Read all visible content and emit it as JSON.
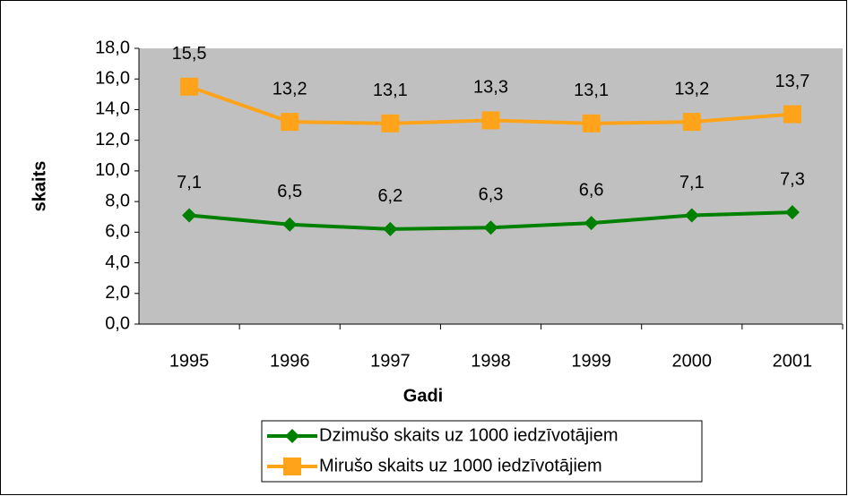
{
  "chart_data": {
    "type": "line",
    "x_label": "Gadi",
    "y_label": "skaits",
    "categories": [
      "1995",
      "1996",
      "1997",
      "1998",
      "1999",
      "2000",
      "2001"
    ],
    "series": [
      {
        "name": "Dzimušo skaits uz 1000 iedzīvotājiem",
        "color": "#008000",
        "marker": "diamond",
        "values": [
          7.1,
          6.5,
          6.2,
          6.3,
          6.6,
          7.1,
          7.3
        ],
        "value_labels": [
          "7,1",
          "6,5",
          "6,2",
          "6,3",
          "6,6",
          "7,1",
          "7,3"
        ]
      },
      {
        "name": "Mirušo skaits uz 1000 iedzīvotājiem",
        "color": "#ffa31a",
        "marker": "square",
        "values": [
          15.5,
          13.2,
          13.1,
          13.3,
          13.1,
          13.2,
          13.7
        ],
        "value_labels": [
          "15,5",
          "13,2",
          "13,1",
          "13,3",
          "13,1",
          "13,2",
          "13,7"
        ]
      }
    ],
    "ylim": [
      0,
      18
    ],
    "yticks": [
      {
        "value": 0,
        "label": "0,0"
      },
      {
        "value": 2,
        "label": "2,0"
      },
      {
        "value": 4,
        "label": "4,0"
      },
      {
        "value": 6,
        "label": "6,0"
      },
      {
        "value": 8,
        "label": "8,0"
      },
      {
        "value": 10,
        "label": "10,0"
      },
      {
        "value": 12,
        "label": "12,0"
      },
      {
        "value": 14,
        "label": "14,0"
      },
      {
        "value": 16,
        "label": "16,0"
      },
      {
        "value": 18,
        "label": "18,0"
      }
    ],
    "plot_background": "#c0c0c0",
    "legend": "bottom"
  }
}
